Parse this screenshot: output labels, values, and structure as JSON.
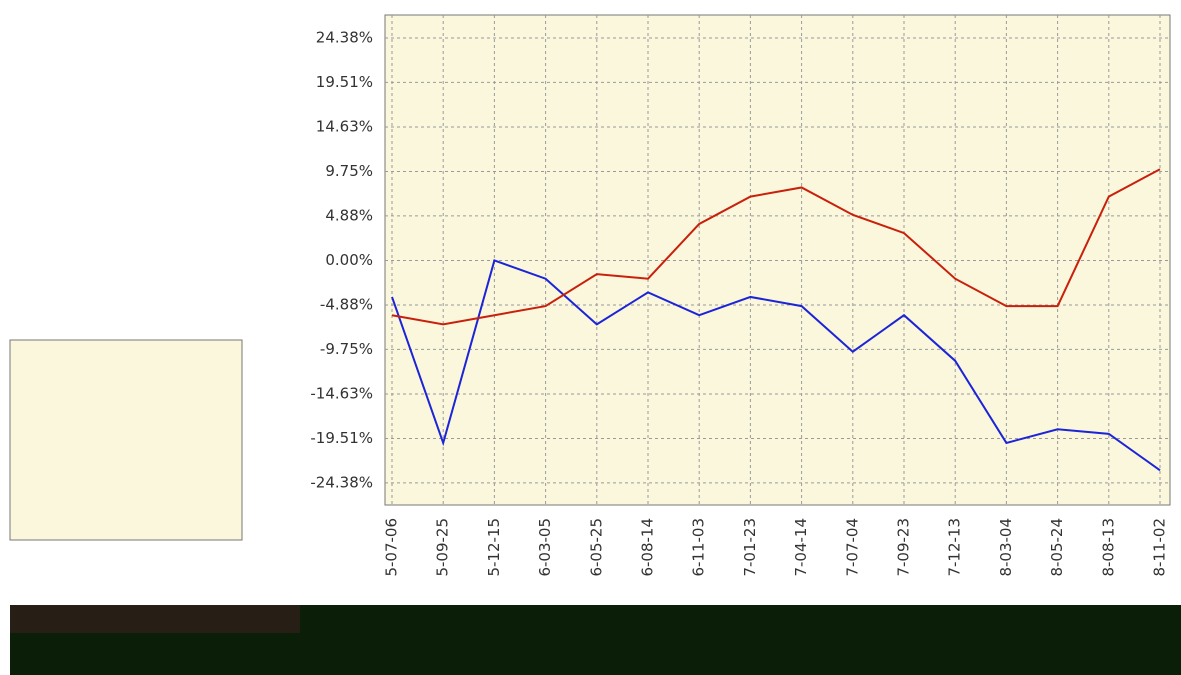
{
  "chart_data": {
    "type": "line",
    "categories": [
      "5-07-06",
      "5-09-25",
      "5-12-15",
      "6-03-05",
      "6-05-25",
      "6-08-14",
      "6-11-03",
      "7-01-23",
      "7-04-14",
      "7-07-04",
      "7-09-23",
      "7-12-13",
      "8-03-04",
      "8-05-24",
      "8-08-13",
      "8-11-02"
    ],
    "series": [
      {
        "color": "#1c24d8",
        "values": [
          -4,
          -20,
          0,
          -2,
          -7,
          -3.5,
          -6,
          -4,
          -5,
          -10,
          -6,
          -11,
          -20,
          -18.5,
          -19,
          -23
        ]
      },
      {
        "color": "#c8200c",
        "values": [
          -6,
          -7,
          -6,
          -5,
          -1.5,
          -2,
          4,
          7,
          8,
          5,
          3,
          -2,
          -5,
          -5,
          7,
          10
        ]
      }
    ],
    "ylim": [
      -26.8,
      26.9
    ],
    "yticks": [
      {
        "value": 24.38,
        "label": "24.38%"
      },
      {
        "value": 19.51,
        "label": "19.51%"
      },
      {
        "value": 14.63,
        "label": "14.63%"
      },
      {
        "value": 9.75,
        "label": "9.75%"
      },
      {
        "value": 4.88,
        "label": "4.88%"
      },
      {
        "value": 0,
        "label": "0.00%"
      },
      {
        "value": -4.88,
        "label": "-4.88%"
      },
      {
        "value": -9.75,
        "label": "-9.75%"
      },
      {
        "value": -14.63,
        "label": "-14.63%"
      },
      {
        "value": -19.51,
        "label": "-19.51%"
      },
      {
        "value": -24.38,
        "label": "-24.38%"
      }
    ],
    "grid": true
  }
}
